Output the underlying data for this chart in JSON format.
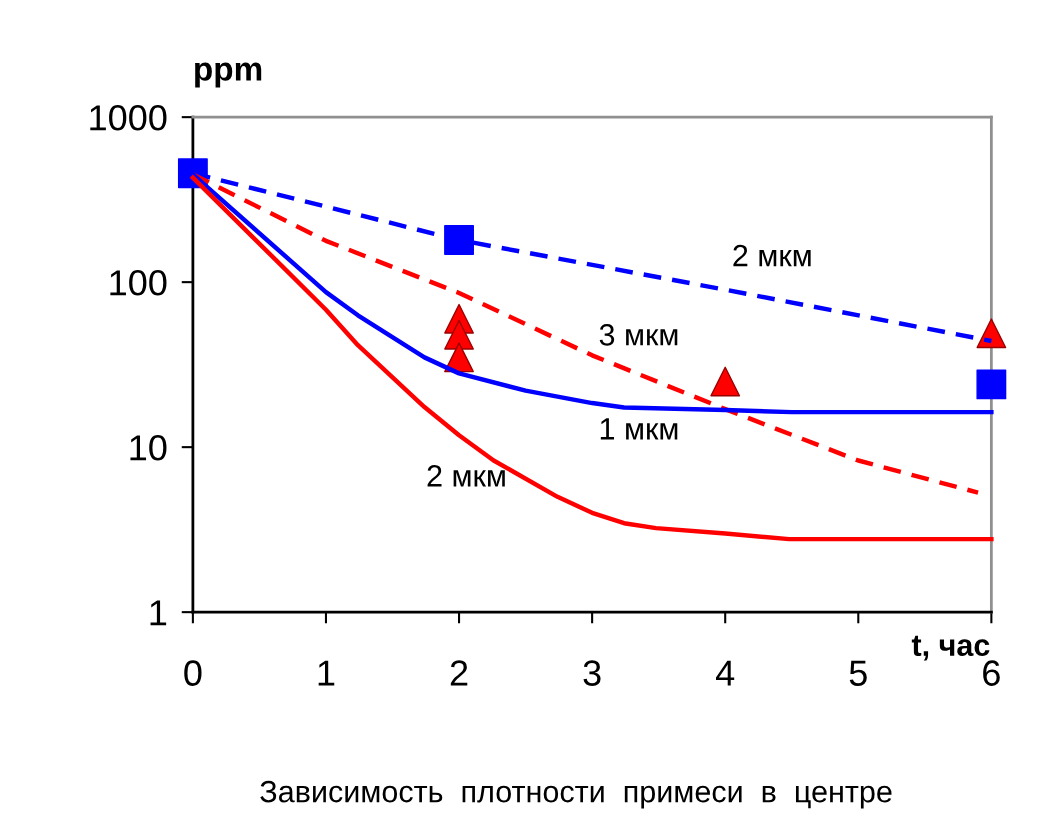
{
  "chart_data": {
    "type": "line",
    "ylabel": "ppm",
    "xlabel": "t, час",
    "log": "y",
    "xlim": [
      0,
      6
    ],
    "ylim": [
      1,
      1000
    ],
    "xticks": [
      0,
      1,
      2,
      3,
      4,
      5,
      6
    ],
    "yticks": [
      1,
      10,
      100,
      1000
    ],
    "grid": false,
    "legend": false,
    "series": [
      {
        "name": "2 мкм",
        "color": "#0000ff",
        "line_style": "dashed",
        "marker": "none",
        "x": [
          0,
          2,
          4,
          6
        ],
        "values": [
          457,
          180,
          90,
          44
        ]
      },
      {
        "name": "3 мкм",
        "color": "#ff0000",
        "line_style": "dashed",
        "marker": "none",
        "x": [
          0,
          1,
          2,
          3,
          4,
          5,
          5.9
        ],
        "values": [
          450,
          178,
          86,
          36,
          17,
          8.3,
          5.3
        ]
      },
      {
        "name": "1 мкм",
        "color": "#0000ff",
        "line_style": "solid",
        "marker": "none",
        "x": [
          0,
          1,
          1.24,
          1.74,
          2,
          2.5,
          3,
          3.24,
          4,
          4.5,
          6
        ],
        "values": [
          450,
          87,
          63,
          35,
          28,
          22,
          18.5,
          17.4,
          16.8,
          16.3,
          16.3
        ]
      },
      {
        "name": "2 мкм",
        "color": "#ff0000",
        "line_style": "solid",
        "marker": "none",
        "x": [
          0,
          1,
          1.24,
          1.74,
          2,
          2.26,
          2.74,
          3,
          3.24,
          3.48,
          4,
          4.48,
          6
        ],
        "values": [
          430,
          68,
          41.5,
          17.5,
          11.8,
          8.3,
          5.0,
          4.0,
          3.46,
          3.23,
          3.0,
          2.77,
          2.77
        ]
      },
      {
        "type": "scatter",
        "color": "#ff0000",
        "marker": "triangle",
        "x": [
          2,
          2,
          2,
          4,
          6
        ],
        "values": [
          60,
          48,
          35,
          25,
          49
        ]
      },
      {
        "type": "scatter",
        "color": "#0000ff",
        "marker": "square",
        "x": [
          0,
          2,
          6
        ],
        "values": [
          457,
          180,
          24
        ]
      }
    ],
    "annotations": [
      "Зависимость  плотности  примеси  в  центре"
    ]
  }
}
